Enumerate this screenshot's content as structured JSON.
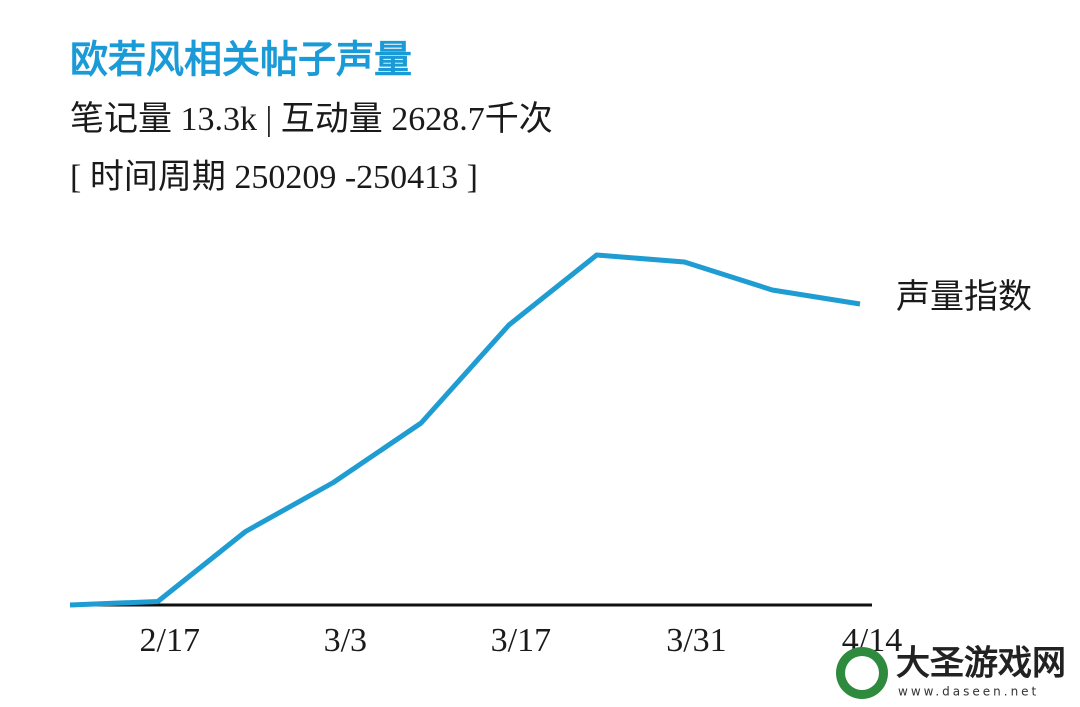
{
  "chart_data": {
    "type": "line",
    "title": "欧若风相关帖子声量",
    "subtitle": [
      "笔记量 13.3k |  互动量 2628.7千次",
      "[ 时间周期 250209 -250413 ]"
    ],
    "categories": [
      null,
      "2/17",
      null,
      "3/3",
      null,
      "3/17",
      null,
      "3/31",
      null,
      "4/14"
    ],
    "series": [
      {
        "name": "声量指数",
        "color": "#1f9dd2",
        "values": [
          0,
          1,
          21,
          35,
          52,
          80,
          100,
          98,
          90,
          86
        ]
      }
    ],
    "ylim": [
      0,
      100
    ],
    "watermark": {
      "name": "大圣游戏网",
      "url": "www.daseen.net"
    }
  }
}
